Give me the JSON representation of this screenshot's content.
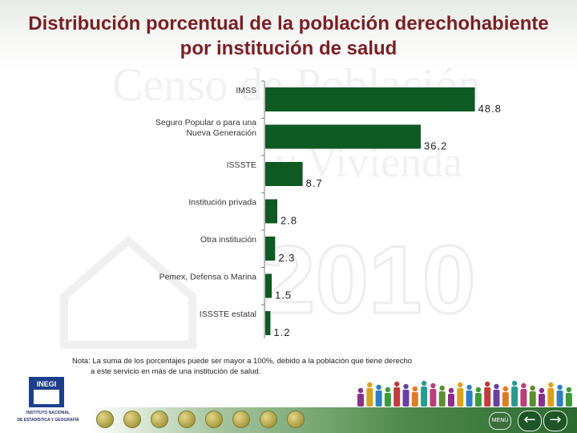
{
  "header": {
    "title_line1": "Distribución porcentual de la población derechohabiente",
    "title_line2": "por institución de salud"
  },
  "chart_data": {
    "type": "bar",
    "orientation": "horizontal",
    "categories": [
      [
        "IMSS"
      ],
      [
        "Seguro Popular o para una",
        "Nueva Generación"
      ],
      [
        "ISSSTE"
      ],
      [
        "Institución privada"
      ],
      [
        "Otra institución"
      ],
      [
        "Pemex, Defensa o Marina"
      ],
      [
        "ISSSTE estatal"
      ]
    ],
    "values": [
      48.8,
      36.2,
      8.7,
      2.8,
      2.3,
      1.5,
      1.2
    ],
    "value_labels": [
      "48.8",
      "36.2",
      "8.7",
      "2.8",
      "2.3",
      "1.5",
      "1.2"
    ],
    "bar_color": "#0f5a23",
    "xlim": [
      0,
      50
    ],
    "grid": false,
    "legend": "none"
  },
  "note": {
    "line1": "Nota: La suma de los porcentajes puede ser mayor a 100%, debido a la población que tiene derecho",
    "line2": "a este servicio en más de una institución de salud."
  },
  "footer": {
    "logo_text": "INEGI",
    "logo_caption_1": "INSTITUTO NACIONAL",
    "logo_caption_2": "DE ESTADÍSTICA Y GEOGRAFÍA",
    "menu_label": "MENÚ",
    "prev_icon": "arrow-left-icon",
    "next_icon": "arrow-right-icon"
  },
  "watermark": {
    "line1": "Censo de Población",
    "line2": "y Vivienda",
    "year": "2010"
  },
  "colors": {
    "title": "#7a1f25",
    "bar": "#0f5a23",
    "footer_bar": "#2c6a31"
  }
}
